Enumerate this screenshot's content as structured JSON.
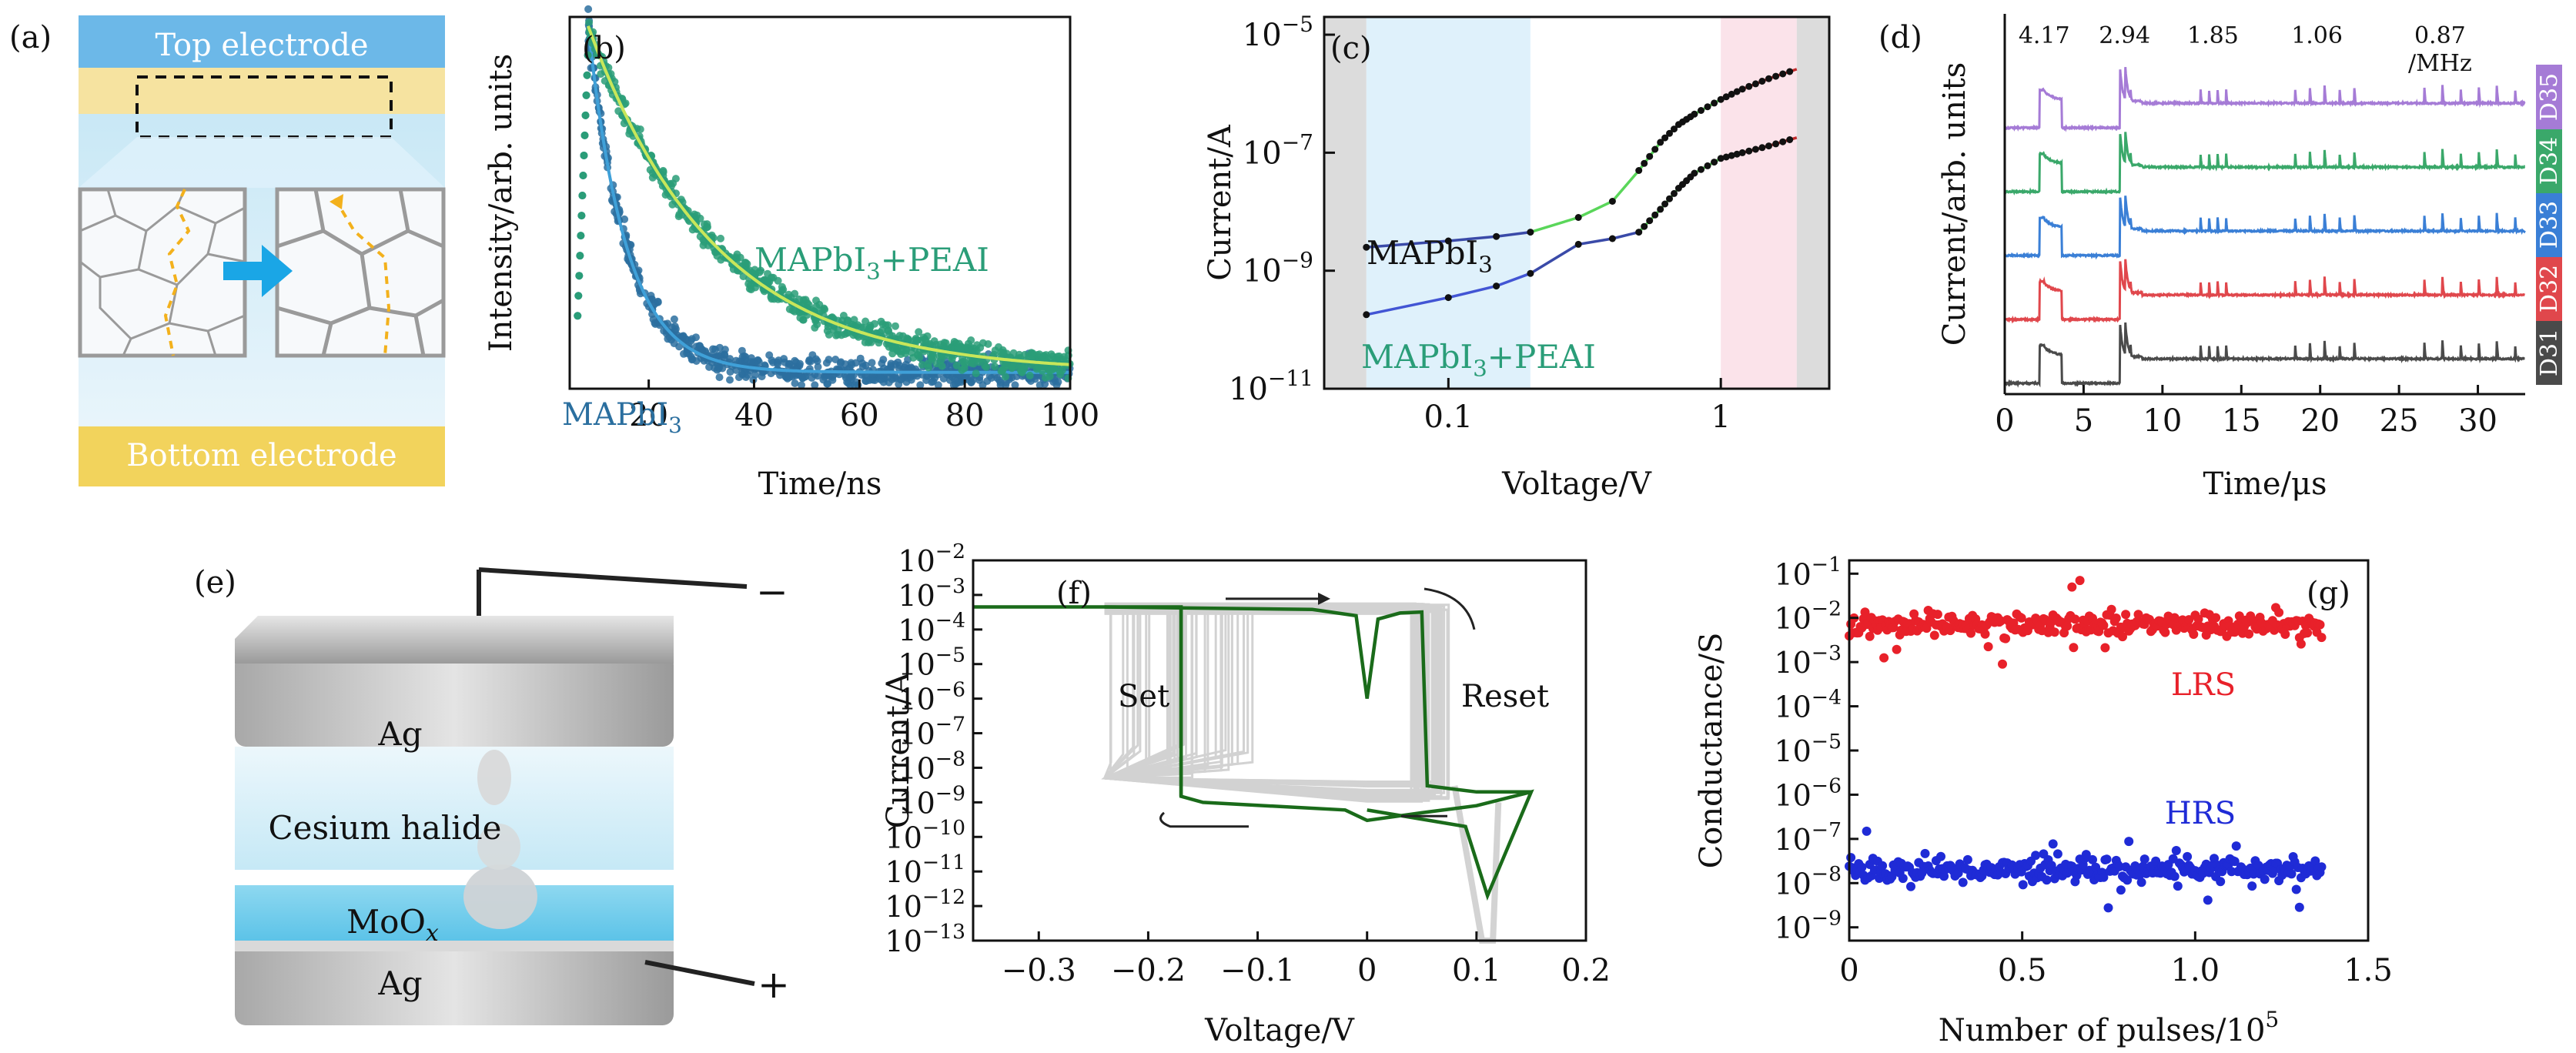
{
  "panels": {
    "a": {
      "label": "(a)",
      "top": "Top electrode",
      "bottom": "Bottom electrode",
      "colors": {
        "top": "#6cb8e8",
        "bottom": "#f2d35c",
        "band": "#f6e3a0",
        "arrow": "#1aa6e6",
        "path": "#f3b11c"
      }
    },
    "e": {
      "label": "(e)",
      "ag_top": "Ag",
      "layer": "Cesium halide",
      "moox": "MoO",
      "moox_sub": "x",
      "ag_bottom": "Ag",
      "minus": "−",
      "plus": "+"
    }
  },
  "chart_data": [
    {
      "id": "b",
      "type": "scatter",
      "label": "(b)",
      "xlabel": "Time/ns",
      "ylabel": "Intensity/arb. units",
      "xlim": [
        5,
        100
      ],
      "xticks": [
        20,
        40,
        60,
        80,
        100
      ],
      "xticklabels": [
        "20",
        "40",
        "60",
        "80",
        "100"
      ],
      "series": [
        {
          "name": "MAPbI",
          "sub": "3",
          "color": "#2b6f9f",
          "fit": "#3fa0d8",
          "peak_x": 8.5,
          "tau": 7.2
        },
        {
          "name": "MAPbI",
          "sub": "3",
          "suffix": "+PEAI",
          "color": "#2a9d78",
          "fit": "#c8e65a",
          "peak_x": 8.5,
          "tau": 24
        }
      ]
    },
    {
      "id": "c",
      "type": "line",
      "label": "(c)",
      "xlabel": "Voltage/V",
      "ylabel": "Current/A",
      "xscale": "log",
      "yscale": "log",
      "xlim": [
        0.035,
        2.5
      ],
      "ylim": [
        1e-11,
        2e-05
      ],
      "xticks": [
        0.1,
        1
      ],
      "xticklabels": [
        "0.1",
        "1"
      ],
      "yticks": [
        1e-11,
        1e-09,
        1e-07,
        1e-05
      ],
      "yticklabels": [
        "10",
        "10",
        "10",
        "10"
      ],
      "ytickexp": [
        "−11",
        "−9",
        "−7",
        "−5"
      ],
      "regions": [
        {
          "from": 0.035,
          "to": 0.05,
          "color": "#dcdcdc"
        },
        {
          "from": 0.05,
          "to": 0.2,
          "color": "#dff1fb"
        },
        {
          "from": 1.0,
          "to": 1.9,
          "color": "#fbe3ea"
        },
        {
          "from": 1.9,
          "to": 2.5,
          "color": "#dcdcdc"
        }
      ],
      "series": [
        {
          "name": "MAPbI",
          "sub": "3",
          "x": [
            0.05,
            0.1,
            0.15,
            0.2,
            0.3,
            0.4,
            0.5,
            0.6,
            0.7,
            0.8,
            1.0,
            1.2,
            1.5,
            1.9
          ],
          "y": [
            2.5e-09,
            3.2e-09,
            3.8e-09,
            4.5e-09,
            8e-09,
            1.5e-08,
            5e-08,
            1.5e-07,
            3e-07,
            4.5e-07,
            8e-07,
            1.2e-06,
            1.8e-06,
            2.6e-06
          ]
        },
        {
          "name": "MAPbI",
          "sub": "3",
          "suffix": "+PEAI",
          "x": [
            0.05,
            0.1,
            0.15,
            0.2,
            0.3,
            0.4,
            0.5,
            0.6,
            0.7,
            0.8,
            1.0,
            1.2,
            1.5,
            1.9
          ],
          "y": [
            1.8e-10,
            3.5e-10,
            5.5e-10,
            9e-10,
            2.8e-09,
            3.5e-09,
            4.5e-09,
            1.1e-08,
            2.5e-08,
            4.5e-08,
            8e-08,
            1e-07,
            1.3e-07,
            1.8e-07
          ]
        }
      ]
    },
    {
      "id": "d",
      "type": "line",
      "label": "(d)",
      "xlabel": "Time/μs",
      "ylabel": "Current/arb. units",
      "xlim": [
        0,
        33
      ],
      "xticks": [
        0,
        5,
        10,
        15,
        20,
        25,
        30
      ],
      "xticklabels": [
        "0",
        "5",
        "10",
        "15",
        "20",
        "25",
        "30"
      ],
      "freq_labels": [
        "4.17",
        "2.94",
        "1.85",
        "1.06",
        "0.87"
      ],
      "freq_unit": "/MHz",
      "freq_pos": [
        2.5,
        7.6,
        13.2,
        19.8,
        27.6
      ],
      "groups": [
        {
          "start": 2.2,
          "n": 1,
          "period": 0.24,
          "width": 1.4
        },
        {
          "start": 7.3,
          "n": 3,
          "period": 0.34
        },
        {
          "start": 12.4,
          "n": 4,
          "period": 0.54
        },
        {
          "start": 18.4,
          "n": 5,
          "period": 0.94
        },
        {
          "start": 26.6,
          "n": 6,
          "period": 1.15
        }
      ],
      "series": [
        {
          "name": "D31",
          "color": "#4a4a4a"
        },
        {
          "name": "D32",
          "color": "#e0474c"
        },
        {
          "name": "D33",
          "color": "#3a7fd6"
        },
        {
          "name": "D34",
          "color": "#3aa86a"
        },
        {
          "name": "D35",
          "color": "#a57bd6"
        }
      ]
    },
    {
      "id": "f",
      "type": "line",
      "label": "(f)",
      "xlabel": "Voltage/V",
      "ylabel": "Current/A",
      "yscale": "log",
      "xlim": [
        -0.36,
        0.2
      ],
      "ylim": [
        1e-13,
        0.01
      ],
      "xticks": [
        -0.3,
        -0.2,
        -0.1,
        0,
        0.1,
        0.2
      ],
      "xticklabels": [
        "−0.3",
        "−0.2",
        "−0.1",
        "0",
        "0.1",
        "0.2"
      ],
      "yexp": [
        "−2",
        "−3",
        "−4",
        "−5",
        "−6",
        "−7",
        "−8",
        "−9",
        "−10",
        "−11",
        "−12",
        "−13"
      ],
      "annotations": [
        "Set",
        "Reset"
      ],
      "main_color": "#1a6b1a",
      "cycle_color": "#c4c4c4"
    },
    {
      "id": "g",
      "type": "scatter",
      "label": "(g)",
      "xlabel": "Number of pulses/10",
      "xlabel_sup": "5",
      "ylabel": "Conductance/S",
      "yscale": "log",
      "xlim": [
        0,
        1.5
      ],
      "ylim": [
        5e-10,
        0.2
      ],
      "xticks": [
        0,
        0.5,
        1.0,
        1.5
      ],
      "xticklabels": [
        "0",
        "0.5",
        "1.0",
        "1.5"
      ],
      "yexp": [
        "−1",
        "−2",
        "−3",
        "−4",
        "−5",
        "−6",
        "−7",
        "−8",
        "−9"
      ],
      "series": [
        {
          "name": "LRS",
          "color": "#e8212a",
          "center": 0.007,
          "spread": 0.22,
          "count": 300,
          "xmax": 1.37
        },
        {
          "name": "HRS",
          "color": "#1f2bd6",
          "center": 2e-08,
          "spread": 0.22,
          "count": 300,
          "xmax": 1.37
        }
      ]
    }
  ]
}
